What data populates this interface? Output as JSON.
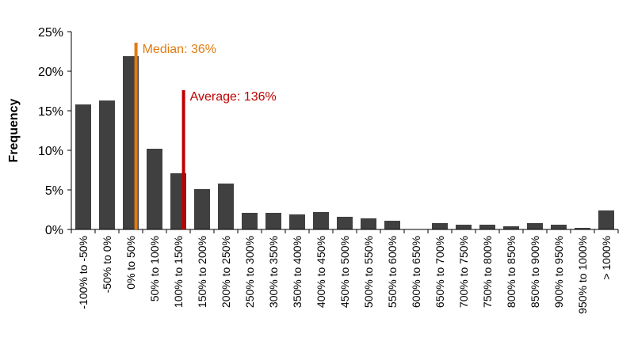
{
  "chart_data": {
    "type": "bar",
    "title": "",
    "xlabel": "",
    "ylabel": "Frequency",
    "ylim": [
      0,
      25
    ],
    "yticks": [
      "0%",
      "5%",
      "10%",
      "15%",
      "20%",
      "25%"
    ],
    "grid": false,
    "bar_color": "#404040",
    "categories": [
      "-100% to -50%",
      "-50% to 0%",
      "0% to 50%",
      "50% to 100%",
      "100% to 150%",
      "150% to 200%",
      "200% to 250%",
      "250% to 300%",
      "300% to 350%",
      "350% to 400%",
      "400% to 450%",
      "450% to 500%",
      "500% to 550%",
      "550% to 600%",
      "600% to 650%",
      "650% to 700%",
      "700% to 750%",
      "750% to 800%",
      "800% to 850%",
      "850% to 900%",
      "900% to 950%",
      "950% to 1000%",
      "> 1000%"
    ],
    "values": [
      15.8,
      16.3,
      21.9,
      10.2,
      7.1,
      5.1,
      5.8,
      2.1,
      2.1,
      1.9,
      2.2,
      1.6,
      1.4,
      1.1,
      0.0,
      0.8,
      0.6,
      0.6,
      0.4,
      0.8,
      0.6,
      0.2,
      2.4
    ],
    "annotations": [
      {
        "label": "Median: 36%",
        "x_value": 36,
        "y_top": 23.6,
        "color": "#E07B10"
      },
      {
        "label": "Average: 136%",
        "x_value": 136,
        "y_top": 17.6,
        "color": "#C00000"
      }
    ]
  }
}
